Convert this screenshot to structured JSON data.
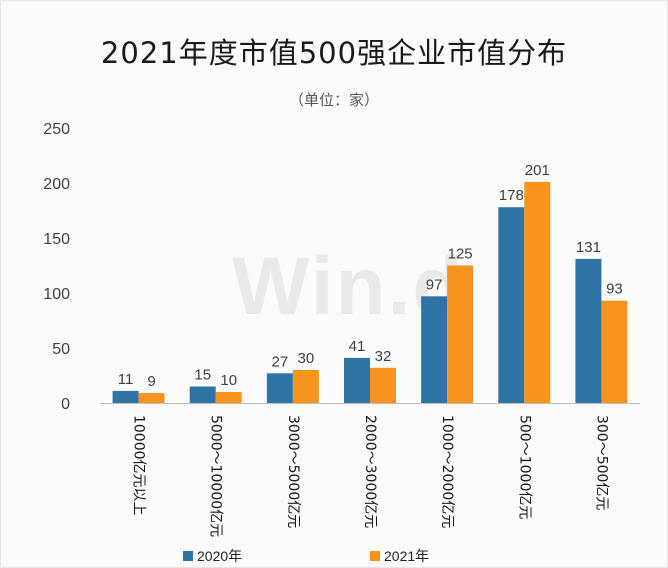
{
  "title": "2021年度市值500强企业市值分布",
  "subtitle": "（单位：家）",
  "watermark": "Win.d",
  "colors": {
    "2020年": "#2e75a6",
    "2021年": "#f7941d"
  },
  "chart_data": {
    "type": "bar",
    "title": "2021年度市值500强企业市值分布",
    "subtitle": "（单位：家）",
    "categories": [
      "10000亿元以上",
      "5000～10000亿元",
      "3000～5000亿元",
      "2000～3000亿元",
      "1000～2000亿元",
      "500～1000亿元",
      "300～500亿元"
    ],
    "series": [
      {
        "name": "2020年",
        "values": [
          11,
          15,
          27,
          41,
          97,
          178,
          131
        ]
      },
      {
        "name": "2021年",
        "values": [
          9,
          10,
          30,
          32,
          125,
          201,
          93
        ]
      }
    ],
    "yticks": [
      0,
      50,
      100,
      150,
      200,
      250
    ],
    "ylim": [
      0,
      250
    ],
    "grid": false,
    "legend": "bottom"
  }
}
